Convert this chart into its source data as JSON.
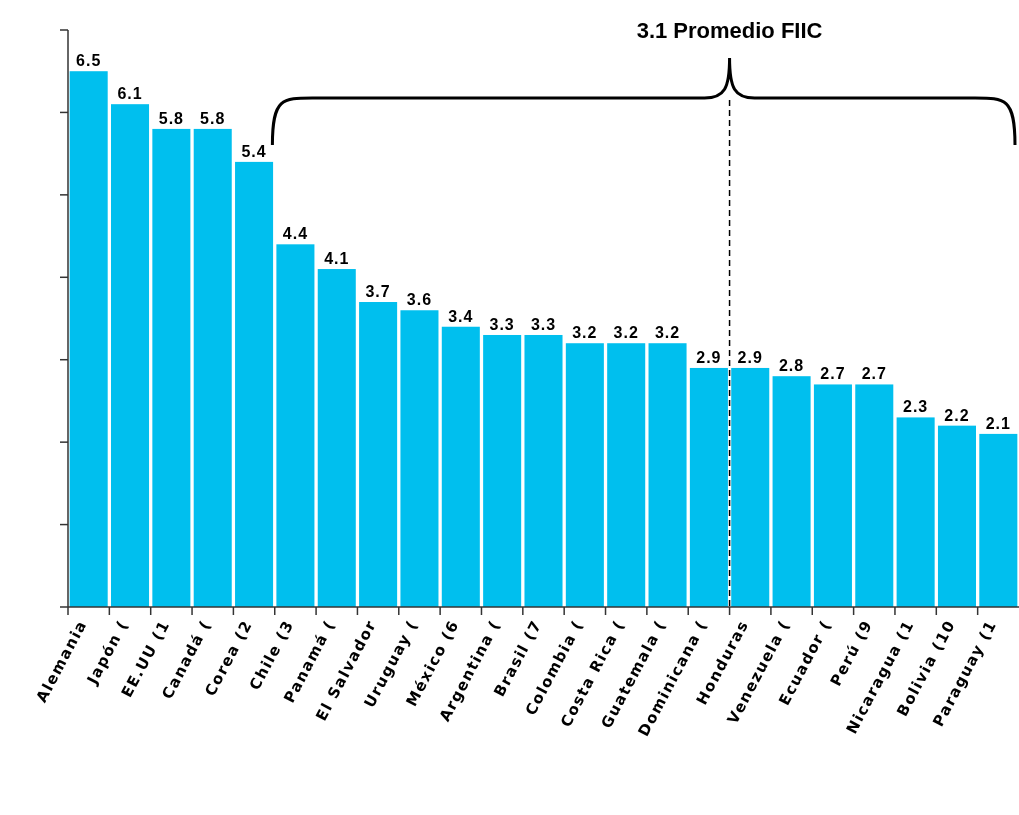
{
  "chart_data": {
    "type": "bar",
    "categories": [
      "Alemania",
      "Japón (",
      "EE.UU (1",
      "Canadá (",
      "Corea (2",
      "Chile (3",
      "Panamá (",
      "El Salvador",
      "Uruguay (",
      "México (6",
      "Argentina (",
      "Brasil (7",
      "Colombia (",
      "Costa Rica (",
      "Guatemala (",
      "Dominicana (",
      "Honduras",
      "Venezuela (",
      "Ecuador (",
      "Perú (9",
      "Nicaragua (1",
      "Bolivia (10",
      "Paraguay (1"
    ],
    "values": [
      6.5,
      6.1,
      5.8,
      5.8,
      5.4,
      4.4,
      4.1,
      3.7,
      3.6,
      3.4,
      3.3,
      3.3,
      3.2,
      3.2,
      3.2,
      2.9,
      2.9,
      2.8,
      2.7,
      2.7,
      2.3,
      2.2,
      2.1
    ],
    "color": "#00bfee",
    "ylim": [
      0,
      7
    ],
    "yticks": [
      {
        "value": 0,
        "label": null
      },
      {
        "value": 1,
        "label": null
      },
      {
        "value": 2,
        "label": null
      },
      {
        "value": 3,
        "label": null
      },
      {
        "value": 4,
        "label": null
      },
      {
        "value": 5,
        "label": null
      },
      {
        "value": 6,
        "label": null
      },
      {
        "value": 7,
        "label": null
      }
    ],
    "tick_labels": "x",
    "data_labels": true,
    "annotations": [
      "3.1 Promedio FIIC"
    ]
  }
}
